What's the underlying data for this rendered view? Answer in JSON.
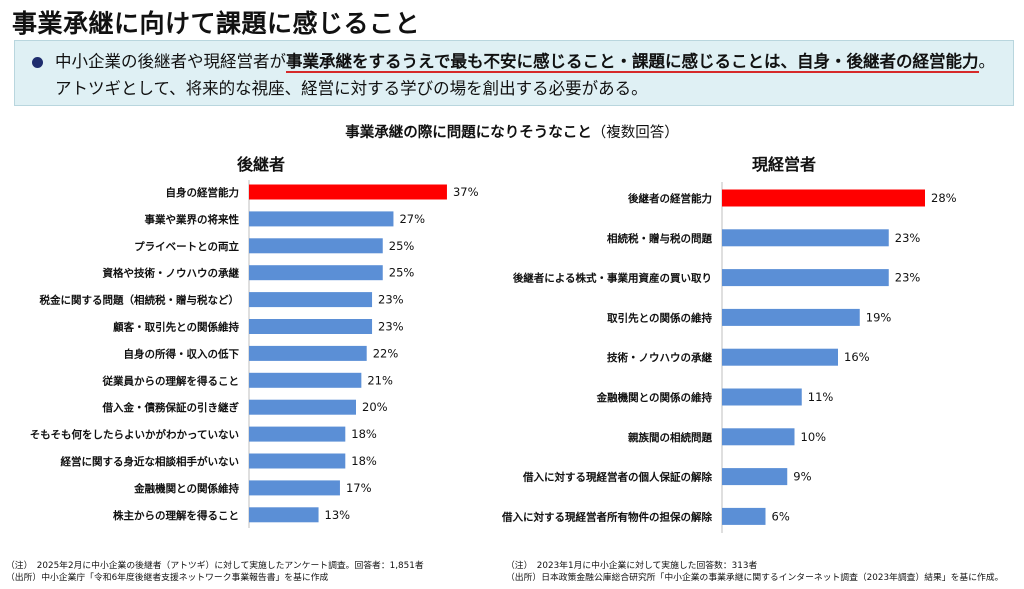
{
  "page": {
    "title": "事業承継に向けて課題に感じること",
    "summary_pre": "中小企業の後継者や現経営者が",
    "summary_highlight": "事業承継をするうえで最も不安に感じること・課題に感じることは、自身・後継者の経営能力",
    "summary_post": "。アトツギとして、将来的な視座、経営に対する学びの場を創出する必要がある。",
    "chart_title": "事業承継の際に問題になりそうなこと",
    "chart_subtitle": "（複数回答）"
  },
  "colors": {
    "highlight": "#ff0000",
    "bar": "#5b8fd6",
    "summary_bg": "#dff0f4",
    "bullet": "#1f2d6e"
  },
  "chart_data": [
    {
      "type": "bar",
      "orientation": "horizontal",
      "title": "後継者",
      "categories": [
        "自身の経営能力",
        "事業や業界の将来性",
        "プライベートとの両立",
        "資格や技術・ノウハウの承継",
        "税金に関する問題（相続税・贈与税など）",
        "顧客・取引先との関係維持",
        "自身の所得・収入の低下",
        "従業員からの理解を得ること",
        "借入金・債務保証の引き継ぎ",
        "そもそも何をしたらよいかがわかっていない",
        "経営に関する身近な相談相手がいない",
        "金融機関との関係維持",
        "株主からの理解を得ること"
      ],
      "values": [
        37,
        27,
        25,
        25,
        23,
        23,
        22,
        21,
        20,
        18,
        18,
        17,
        13
      ],
      "value_labels": [
        "37%",
        "27%",
        "25%",
        "25%",
        "23%",
        "23%",
        "22%",
        "21%",
        "20%",
        "18%",
        "18%",
        "17%",
        "13%"
      ],
      "unit": "%",
      "highlight_index": 0
    },
    {
      "type": "bar",
      "orientation": "horizontal",
      "title": "現経営者",
      "categories": [
        "後継者の経営能力",
        "相続税・贈与税の問題",
        "後継者による株式・事業用資産の買い取り",
        "取引先との関係の維持",
        "技術・ノウハウの承継",
        "金融機関との関係の維持",
        "親族間の相続問題",
        "借入に対する現経営者の個人保証の解除",
        "借入に対する現経営者所有物件の担保の解除"
      ],
      "values": [
        28,
        23,
        23,
        19,
        16,
        11,
        10,
        9,
        6
      ],
      "value_labels": [
        "28%",
        "23%",
        "23%",
        "19%",
        "16%",
        "11%",
        "10%",
        "9%",
        "6%"
      ],
      "unit": "%",
      "highlight_index": 0
    }
  ],
  "notes": {
    "left_note": "（注）　2025年2月に中小企業の後継者（アトツギ）に対して実施したアンケート調査。回答者：1,851者",
    "left_source": "（出所）中小企業庁「令和6年度後継者支援ネットワーク事業報告書」を基に作成",
    "right_note": "（注）　2023年1月に中小企業に対して実施した回答数：313者",
    "right_source": "（出所）日本政策金融公庫総合研究所「中小企業の事業承継に関するインターネット調査（2023年調査）結果」を基に作成。"
  }
}
